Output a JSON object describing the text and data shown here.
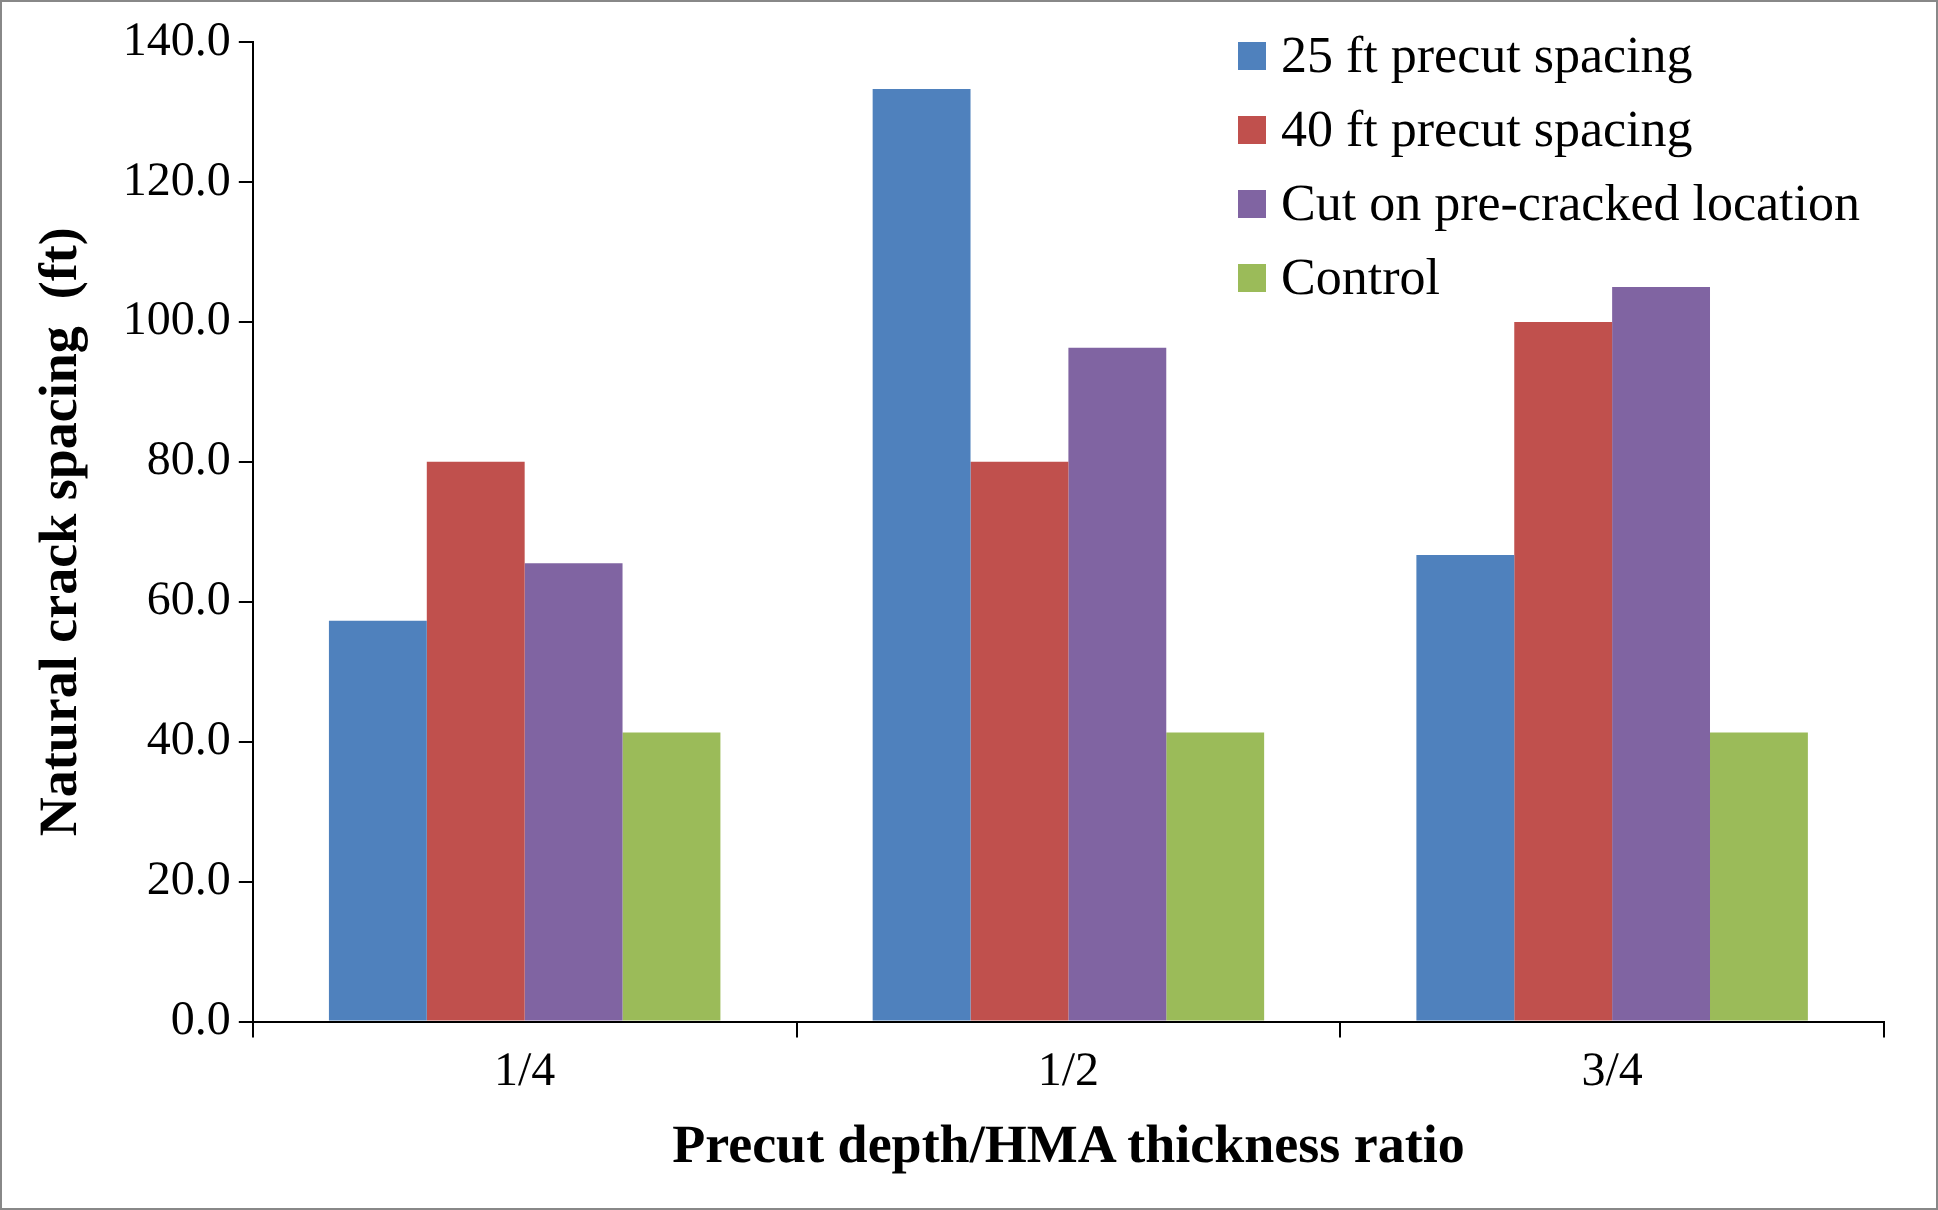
{
  "chart_data": {
    "type": "bar",
    "xlabel": "Precut depth/HMA thickness ratio",
    "ylabel": "Natural crack spacing  (ft)",
    "categories": [
      "1/4",
      "1/2",
      "3/4"
    ],
    "series": [
      {
        "name": "25 ft precut spacing",
        "color": "#4f81bd",
        "values": [
          57.3,
          133.3,
          66.7
        ]
      },
      {
        "name": "40 ft precut spacing",
        "color": "#c0504d",
        "values": [
          80,
          80,
          100
        ]
      },
      {
        "name": "Cut on pre-cracked location",
        "color": "#8064a2",
        "values": [
          65.5,
          96.3,
          105
        ]
      },
      {
        "name": "Control",
        "color": "#9bbb59",
        "values": [
          41.3,
          41.3,
          41.3
        ]
      }
    ],
    "ylim": [
      0,
      140
    ],
    "yticks": [
      {
        "value": 0,
        "label": "0.0"
      },
      {
        "value": 20,
        "label": "20.0"
      },
      {
        "value": 40,
        "label": "40.0"
      },
      {
        "value": 60,
        "label": "60.0"
      },
      {
        "value": 80,
        "label": "80.0"
      },
      {
        "value": 100,
        "label": "100.0"
      },
      {
        "value": 120,
        "label": "120.0"
      },
      {
        "value": 140,
        "label": "140.0"
      }
    ],
    "grid": false,
    "legend": "top right"
  }
}
